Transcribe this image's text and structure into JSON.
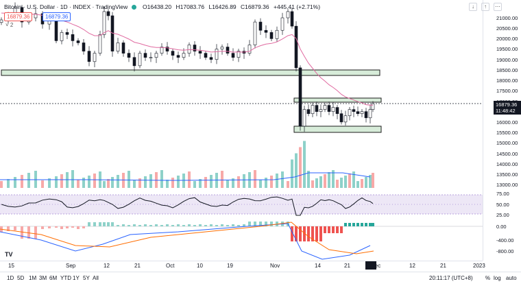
{
  "legend": {
    "symbol": "Bitcoin · U.S. Dollar · 1D · INDEX · TradingView",
    "open": "O16438.20",
    "high": "H17083.76",
    "low": "L16426.89",
    "close": "C16879.36",
    "change": "+445.41 (+2.71%)"
  },
  "tags": {
    "price_red": "16879.36",
    "price_blue": "16879.36",
    "collapse": "˅ 2"
  },
  "price_axis": {
    "ticks": [
      "21000.00",
      "20500.00",
      "20000.00",
      "19500.00",
      "19000.00",
      "18500.00",
      "18000.00",
      "17500.00",
      "17000.00",
      "16500.00",
      "16000.00",
      "15500.00",
      "15000.00",
      "14500.00",
      "14000.00",
      "13500.00",
      "13000.00"
    ],
    "last_price": "16879.36",
    "countdown": "11:48:42"
  },
  "rsi_axis": {
    "ticks": [
      "75.00",
      "50.00",
      "25.00"
    ]
  },
  "macd_axis": {
    "ticks": [
      "0.00",
      "-400.00",
      "-800.00"
    ]
  },
  "xaxis": {
    "ticks": [
      "15",
      "Sep",
      "12",
      "21",
      "Oct",
      "10",
      "19",
      "Nov",
      "14",
      "21",
      "Dec",
      "12",
      "21",
      "2023"
    ],
    "cursor": ""
  },
  "ranges": [
    "1D",
    "5D",
    "1M",
    "3M",
    "6M",
    "YTD",
    "1Y",
    "5Y",
    "All"
  ],
  "clock": "20:11:17 (UTC+8)",
  "right_controls": {
    "percent": "%",
    "log": "log",
    "auto": "auto"
  },
  "colors": {
    "up": "#26a69a",
    "down": "#ef5350",
    "zone_fill": "#d7ecd9",
    "zone_border": "#1b1b1b",
    "ema": "#e06aa0",
    "volume_ma": "#2962ff",
    "rsi": "#131722",
    "rsi_band": "#ede7f6",
    "macd": "#2962ff",
    "signal": "#ff6d00"
  }
}
